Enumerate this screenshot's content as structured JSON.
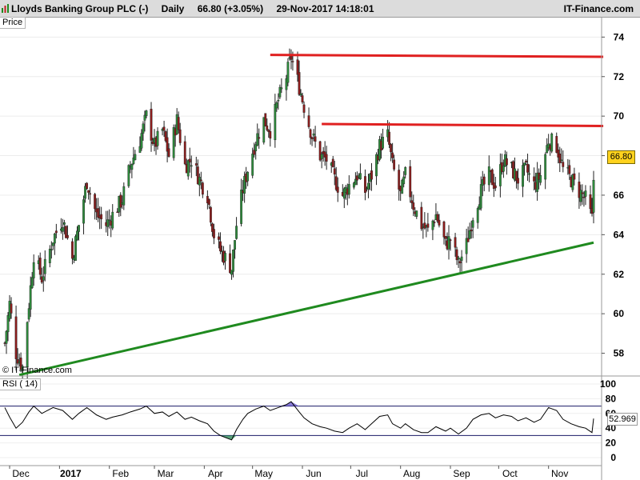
{
  "header": {
    "instrument": "Lloyds Banking Group PLC (-)",
    "period": "Daily",
    "price_change": "66.80 (+3.05%)",
    "datetime": "29-Nov-2017 14:18:01",
    "brand": "IT-Finance.com"
  },
  "price_panel": {
    "label": "Price",
    "watermark": "© IT-Finance.com",
    "last_price": "66.80"
  },
  "rsi_panel": {
    "label": "RSI ( 14)",
    "last_value": "52.969"
  },
  "colors": {
    "up": "#2e8b3c",
    "down": "#8b1c1c",
    "resistance": "#e02020",
    "support": "#1f8a1f",
    "rsi_line": "#000000",
    "rsi_overbought_fill": "#6a5acd",
    "rsi_oversold_fill": "#2e8b57"
  },
  "chart_data": [
    {
      "type": "candlestick",
      "title": "Price",
      "x_axis_labels": [
        "Dec",
        "2017",
        "Feb",
        "Mar",
        "Apr",
        "May",
        "Jun",
        "Jul",
        "Aug",
        "Sep",
        "Oct",
        "Nov"
      ],
      "y_ticks": [
        58,
        60,
        62,
        64,
        66,
        68,
        70,
        72,
        74
      ],
      "ylim": [
        56.0,
        74.5
      ],
      "grid": true,
      "close_series": [
        {
          "date": "2016-11-28",
          "close": 58.5
        },
        {
          "date": "2016-12-01",
          "close": 60.5
        },
        {
          "date": "2016-12-05",
          "close": 58.0
        },
        {
          "date": "2016-12-09",
          "close": 57.3
        },
        {
          "date": "2016-12-13",
          "close": 60.5
        },
        {
          "date": "2016-12-16",
          "close": 63.0
        },
        {
          "date": "2016-12-21",
          "close": 61.8
        },
        {
          "date": "2016-12-28",
          "close": 63.8
        },
        {
          "date": "2017-01-03",
          "close": 64.8
        },
        {
          "date": "2017-01-09",
          "close": 62.8
        },
        {
          "date": "2017-01-13",
          "close": 64.5
        },
        {
          "date": "2017-01-18",
          "close": 66.7
        },
        {
          "date": "2017-01-24",
          "close": 65.0
        },
        {
          "date": "2017-01-30",
          "close": 64.5
        },
        {
          "date": "2017-02-03",
          "close": 65.0
        },
        {
          "date": "2017-02-09",
          "close": 65.8
        },
        {
          "date": "2017-02-14",
          "close": 67.5
        },
        {
          "date": "2017-02-20",
          "close": 68.8
        },
        {
          "date": "2017-02-24",
          "close": 70.0
        },
        {
          "date": "2017-03-01",
          "close": 68.5
        },
        {
          "date": "2017-03-06",
          "close": 69.3
        },
        {
          "date": "2017-03-10",
          "close": 68.0
        },
        {
          "date": "2017-03-15",
          "close": 69.8
        },
        {
          "date": "2017-03-20",
          "close": 67.5
        },
        {
          "date": "2017-03-24",
          "close": 67.8
        },
        {
          "date": "2017-03-29",
          "close": 66.8
        },
        {
          "date": "2017-04-03",
          "close": 66.0
        },
        {
          "date": "2017-04-07",
          "close": 64.0
        },
        {
          "date": "2017-04-11",
          "close": 63.2
        },
        {
          "date": "2017-04-18",
          "close": 62.3
        },
        {
          "date": "2017-04-21",
          "close": 64.5
        },
        {
          "date": "2017-04-25",
          "close": 66.3
        },
        {
          "date": "2017-04-28",
          "close": 67.3
        },
        {
          "date": "2017-05-03",
          "close": 68.8
        },
        {
          "date": "2017-05-08",
          "close": 69.8
        },
        {
          "date": "2017-05-12",
          "close": 69.3
        },
        {
          "date": "2017-05-17",
          "close": 70.8
        },
        {
          "date": "2017-05-22",
          "close": 72.0
        },
        {
          "date": "2017-05-25",
          "close": 73.0
        },
        {
          "date": "2017-05-30",
          "close": 71.5
        },
        {
          "date": "2017-06-02",
          "close": 70.5
        },
        {
          "date": "2017-06-07",
          "close": 69.0
        },
        {
          "date": "2017-06-12",
          "close": 68.0
        },
        {
          "date": "2017-06-16",
          "close": 67.8
        },
        {
          "date": "2017-06-21",
          "close": 66.8
        },
        {
          "date": "2017-06-26",
          "close": 66.0
        },
        {
          "date": "2017-06-30",
          "close": 66.5
        },
        {
          "date": "2017-07-05",
          "close": 67.0
        },
        {
          "date": "2017-07-10",
          "close": 66.2
        },
        {
          "date": "2017-07-14",
          "close": 67.0
        },
        {
          "date": "2017-07-19",
          "close": 68.5
        },
        {
          "date": "2017-07-24",
          "close": 69.0
        },
        {
          "date": "2017-07-27",
          "close": 67.5
        },
        {
          "date": "2017-08-01",
          "close": 66.0
        },
        {
          "date": "2017-08-04",
          "close": 67.0
        },
        {
          "date": "2017-08-09",
          "close": 65.5
        },
        {
          "date": "2017-08-14",
          "close": 64.5
        },
        {
          "date": "2017-08-18",
          "close": 64.2
        },
        {
          "date": "2017-08-23",
          "close": 65.0
        },
        {
          "date": "2017-08-29",
          "close": 63.5
        },
        {
          "date": "2017-09-01",
          "close": 63.8
        },
        {
          "date": "2017-09-06",
          "close": 62.5
        },
        {
          "date": "2017-09-11",
          "close": 63.5
        },
        {
          "date": "2017-09-15",
          "close": 65.0
        },
        {
          "date": "2017-09-20",
          "close": 66.2
        },
        {
          "date": "2017-09-25",
          "close": 67.0
        },
        {
          "date": "2017-09-29",
          "close": 66.5
        },
        {
          "date": "2017-10-04",
          "close": 67.8
        },
        {
          "date": "2017-10-09",
          "close": 67.3
        },
        {
          "date": "2017-10-13",
          "close": 66.8
        },
        {
          "date": "2017-10-18",
          "close": 67.3
        },
        {
          "date": "2017-10-23",
          "close": 66.5
        },
        {
          "date": "2017-10-27",
          "close": 67.0
        },
        {
          "date": "2017-11-01",
          "close": 68.8
        },
        {
          "date": "2017-11-06",
          "close": 68.5
        },
        {
          "date": "2017-11-10",
          "close": 67.3
        },
        {
          "date": "2017-11-15",
          "close": 66.8
        },
        {
          "date": "2017-11-20",
          "close": 66.2
        },
        {
          "date": "2017-11-24",
          "close": 65.8
        },
        {
          "date": "2017-11-28",
          "close": 64.8
        },
        {
          "date": "2017-11-29",
          "close": 66.8
        }
      ],
      "trendlines": [
        {
          "kind": "resistance",
          "from": {
            "date": "2017-05-12",
            "value": 73.1
          },
          "to": {
            "date": "2017-12-05",
            "value": 73.0
          }
        },
        {
          "kind": "resistance",
          "from": {
            "date": "2017-06-13",
            "value": 69.6
          },
          "to": {
            "date": "2017-12-05",
            "value": 69.5
          }
        },
        {
          "kind": "support",
          "from": {
            "date": "2016-12-07",
            "value": 56.9
          },
          "to": {
            "date": "2017-11-29",
            "value": 63.6
          }
        }
      ]
    },
    {
      "type": "line",
      "title": "RSI ( 14)",
      "y_ticks": [
        0,
        20,
        40,
        60,
        80,
        100
      ],
      "ylim": [
        0,
        100
      ],
      "levels": [
        30,
        70
      ],
      "series": [
        {
          "date": "2016-11-28",
          "value": 68
        },
        {
          "date": "2016-12-01",
          "value": 55
        },
        {
          "date": "2016-12-05",
          "value": 40
        },
        {
          "date": "2016-12-09",
          "value": 48
        },
        {
          "date": "2016-12-13",
          "value": 62
        },
        {
          "date": "2016-12-16",
          "value": 70
        },
        {
          "date": "2016-12-21",
          "value": 60
        },
        {
          "date": "2016-12-28",
          "value": 68
        },
        {
          "date": "2017-01-03",
          "value": 64
        },
        {
          "date": "2017-01-09",
          "value": 52
        },
        {
          "date": "2017-01-13",
          "value": 60
        },
        {
          "date": "2017-01-18",
          "value": 68
        },
        {
          "date": "2017-01-24",
          "value": 58
        },
        {
          "date": "2017-01-30",
          "value": 52
        },
        {
          "date": "2017-02-03",
          "value": 55
        },
        {
          "date": "2017-02-09",
          "value": 58
        },
        {
          "date": "2017-02-14",
          "value": 62
        },
        {
          "date": "2017-02-20",
          "value": 66
        },
        {
          "date": "2017-02-24",
          "value": 70
        },
        {
          "date": "2017-03-01",
          "value": 60
        },
        {
          "date": "2017-03-06",
          "value": 62
        },
        {
          "date": "2017-03-10",
          "value": 56
        },
        {
          "date": "2017-03-15",
          "value": 62
        },
        {
          "date": "2017-03-20",
          "value": 52
        },
        {
          "date": "2017-03-24",
          "value": 55
        },
        {
          "date": "2017-03-29",
          "value": 50
        },
        {
          "date": "2017-04-03",
          "value": 46
        },
        {
          "date": "2017-04-07",
          "value": 36
        },
        {
          "date": "2017-04-11",
          "value": 30
        },
        {
          "date": "2017-04-18",
          "value": 24
        },
        {
          "date": "2017-04-21",
          "value": 38
        },
        {
          "date": "2017-04-25",
          "value": 52
        },
        {
          "date": "2017-04-28",
          "value": 60
        },
        {
          "date": "2017-05-03",
          "value": 66
        },
        {
          "date": "2017-05-08",
          "value": 70
        },
        {
          "date": "2017-05-12",
          "value": 64
        },
        {
          "date": "2017-05-17",
          "value": 68
        },
        {
          "date": "2017-05-22",
          "value": 72
        },
        {
          "date": "2017-05-25",
          "value": 76
        },
        {
          "date": "2017-05-30",
          "value": 62
        },
        {
          "date": "2017-06-02",
          "value": 54
        },
        {
          "date": "2017-06-07",
          "value": 46
        },
        {
          "date": "2017-06-12",
          "value": 42
        },
        {
          "date": "2017-06-16",
          "value": 40
        },
        {
          "date": "2017-06-21",
          "value": 36
        },
        {
          "date": "2017-06-26",
          "value": 34
        },
        {
          "date": "2017-06-30",
          "value": 40
        },
        {
          "date": "2017-07-05",
          "value": 46
        },
        {
          "date": "2017-07-10",
          "value": 38
        },
        {
          "date": "2017-07-14",
          "value": 46
        },
        {
          "date": "2017-07-19",
          "value": 56
        },
        {
          "date": "2017-07-24",
          "value": 58
        },
        {
          "date": "2017-07-27",
          "value": 46
        },
        {
          "date": "2017-08-01",
          "value": 40
        },
        {
          "date": "2017-08-04",
          "value": 46
        },
        {
          "date": "2017-08-09",
          "value": 38
        },
        {
          "date": "2017-08-14",
          "value": 34
        },
        {
          "date": "2017-08-18",
          "value": 34
        },
        {
          "date": "2017-08-23",
          "value": 42
        },
        {
          "date": "2017-08-29",
          "value": 36
        },
        {
          "date": "2017-09-01",
          "value": 40
        },
        {
          "date": "2017-09-06",
          "value": 32
        },
        {
          "date": "2017-09-11",
          "value": 40
        },
        {
          "date": "2017-09-15",
          "value": 52
        },
        {
          "date": "2017-09-20",
          "value": 58
        },
        {
          "date": "2017-09-25",
          "value": 60
        },
        {
          "date": "2017-09-29",
          "value": 54
        },
        {
          "date": "2017-10-04",
          "value": 58
        },
        {
          "date": "2017-10-09",
          "value": 56
        },
        {
          "date": "2017-10-13",
          "value": 50
        },
        {
          "date": "2017-10-18",
          "value": 54
        },
        {
          "date": "2017-10-23",
          "value": 48
        },
        {
          "date": "2017-10-27",
          "value": 52
        },
        {
          "date": "2017-11-01",
          "value": 68
        },
        {
          "date": "2017-11-06",
          "value": 64
        },
        {
          "date": "2017-11-10",
          "value": 52
        },
        {
          "date": "2017-11-15",
          "value": 46
        },
        {
          "date": "2017-11-20",
          "value": 42
        },
        {
          "date": "2017-11-24",
          "value": 40
        },
        {
          "date": "2017-11-28",
          "value": 34
        },
        {
          "date": "2017-11-29",
          "value": 53
        }
      ]
    }
  ]
}
